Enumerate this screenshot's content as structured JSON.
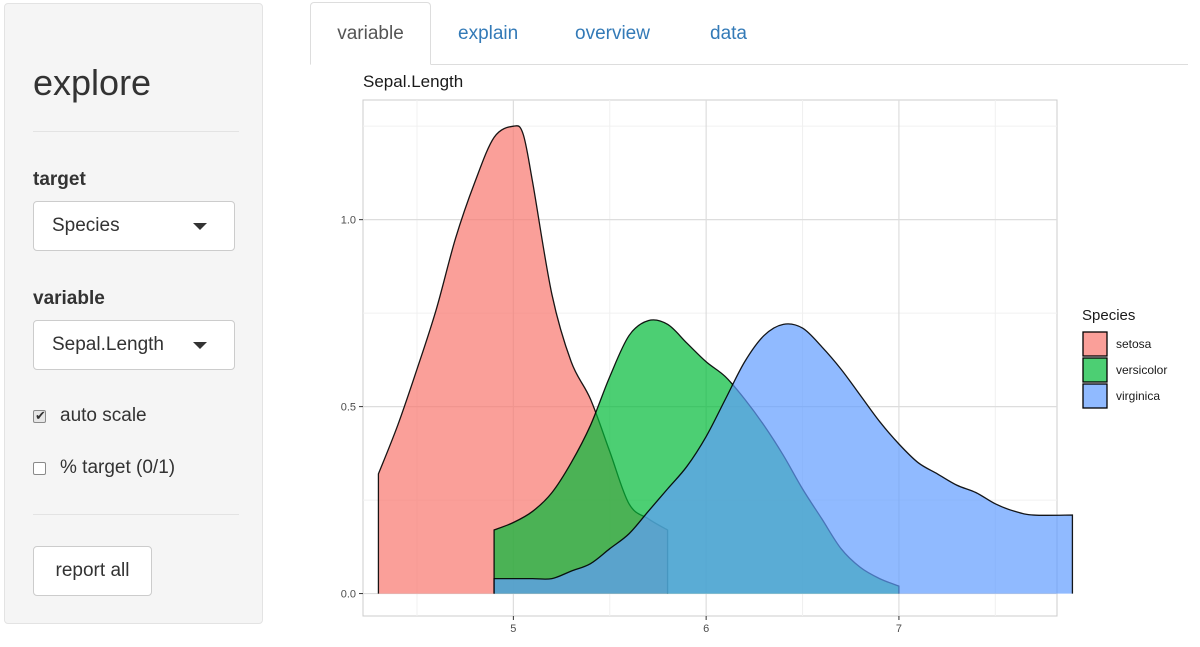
{
  "sidebar": {
    "title": "explore",
    "target_label": "target",
    "target_value": "Species",
    "variable_label": "variable",
    "variable_value": "Sepal.Length",
    "auto_scale_label": "auto scale",
    "auto_scale_checked": true,
    "pct_target_label": "% target (0/1)",
    "pct_target_checked": false,
    "report_button": "report all"
  },
  "tabs": [
    {
      "label": "variable",
      "active": true
    },
    {
      "label": "explain",
      "active": false
    },
    {
      "label": "overview",
      "active": false
    },
    {
      "label": "data",
      "active": false
    }
  ],
  "chart_data": {
    "type": "area",
    "title": "Sepal.Length",
    "xlabel": "",
    "ylabel": "",
    "xlim": [
      4.22,
      7.82
    ],
    "ylim": [
      -0.06,
      1.32
    ],
    "xticks": [
      5,
      6,
      7
    ],
    "xtick_labels": [
      "5",
      "6",
      "7"
    ],
    "yticks": [
      0.0,
      0.5,
      1.0
    ],
    "ytick_labels": [
      "0.0",
      "0.5",
      "1.0"
    ],
    "grid": true,
    "legend": {
      "title": "Species",
      "position": "right"
    },
    "series": [
      {
        "name": "setosa",
        "color": "#F8766D",
        "x": [
          4.3,
          4.4,
          4.5,
          4.6,
          4.7,
          4.8,
          4.9,
          5.0,
          5.05,
          5.1,
          5.2,
          5.3,
          5.4,
          5.5,
          5.6,
          5.7,
          5.8
        ],
        "y": [
          0.32,
          0.45,
          0.6,
          0.76,
          0.95,
          1.1,
          1.22,
          1.25,
          1.23,
          1.1,
          0.8,
          0.62,
          0.52,
          0.38,
          0.24,
          0.2,
          0.17
        ]
      },
      {
        "name": "versicolor",
        "color": "#00BA38",
        "x": [
          4.9,
          5.0,
          5.1,
          5.2,
          5.3,
          5.4,
          5.5,
          5.6,
          5.7,
          5.8,
          5.9,
          6.0,
          6.1,
          6.2,
          6.3,
          6.4,
          6.5,
          6.6,
          6.7,
          6.8,
          6.9,
          7.0
        ],
        "y": [
          0.17,
          0.19,
          0.22,
          0.27,
          0.35,
          0.45,
          0.58,
          0.69,
          0.73,
          0.72,
          0.67,
          0.62,
          0.58,
          0.52,
          0.45,
          0.37,
          0.28,
          0.2,
          0.12,
          0.07,
          0.04,
          0.02
        ]
      },
      {
        "name": "virginica",
        "color": "#619CFF",
        "x": [
          4.9,
          5.0,
          5.1,
          5.2,
          5.3,
          5.4,
          5.5,
          5.6,
          5.7,
          5.8,
          5.9,
          6.0,
          6.1,
          6.2,
          6.3,
          6.4,
          6.5,
          6.6,
          6.7,
          6.8,
          6.9,
          7.0,
          7.1,
          7.2,
          7.3,
          7.4,
          7.5,
          7.6,
          7.7,
          7.9
        ],
        "y": [
          0.04,
          0.04,
          0.04,
          0.04,
          0.06,
          0.08,
          0.12,
          0.16,
          0.22,
          0.28,
          0.34,
          0.42,
          0.52,
          0.62,
          0.69,
          0.72,
          0.71,
          0.66,
          0.6,
          0.53,
          0.46,
          0.4,
          0.35,
          0.32,
          0.29,
          0.27,
          0.24,
          0.22,
          0.21,
          0.21
        ]
      }
    ]
  }
}
